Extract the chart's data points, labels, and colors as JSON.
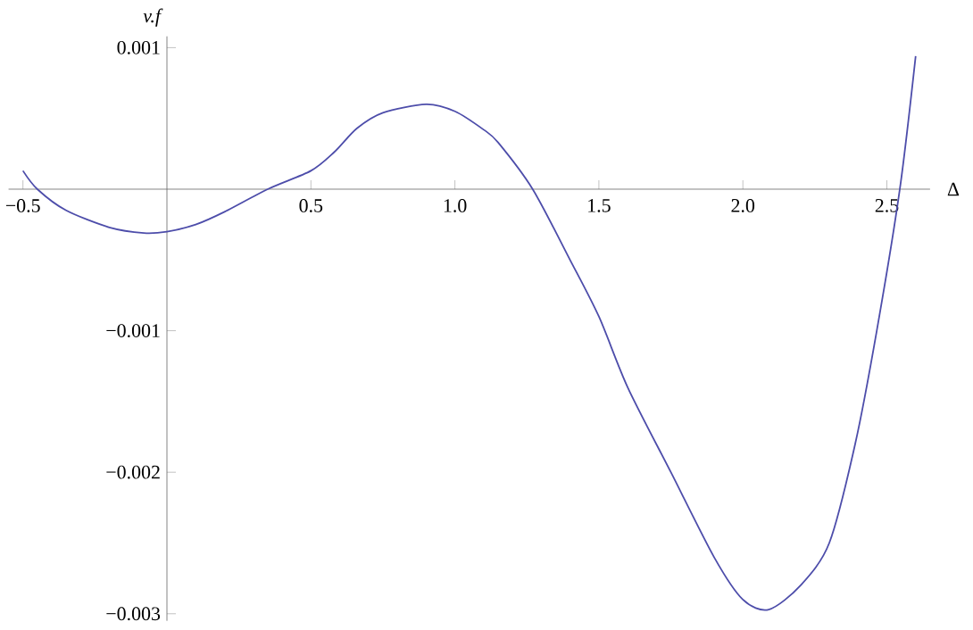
{
  "chart_data": {
    "type": "line",
    "xlabel": "Δ",
    "ylabel": "v.f",
    "xlim": [
      -0.55,
      2.65
    ],
    "ylim": [
      -0.00305,
      0.00108
    ],
    "xticks": [
      {
        "value": -0.5,
        "label": "−0.5"
      },
      0.5,
      {
        "value": 1,
        "label": "1.0"
      },
      1.5,
      {
        "value": 2,
        "label": "2.0"
      },
      2.5
    ],
    "yticks": [
      {
        "value": -0.003,
        "label": "−0.003"
      },
      {
        "value": -0.002,
        "label": "−0.002"
      },
      {
        "value": -0.001,
        "label": "−0.001"
      },
      0.001
    ],
    "grid": false,
    "marker": "none",
    "line_style": "solid",
    "series": [
      {
        "color": "#4d4daa",
        "x": [
          -0.5,
          -0.45,
          -0.35,
          -0.2,
          -0.08,
          0,
          0.1,
          0.2,
          0.35,
          0.5,
          0.58,
          0.66,
          0.75,
          0.9,
          1.0,
          1.1,
          1.15,
          1.27,
          1.4,
          1.5,
          1.6,
          1.75,
          1.9,
          2.0,
          2.09,
          2.2,
          2.3,
          2.39,
          2.465,
          2.545,
          2.6
        ],
        "values": [
          0.00013,
          0,
          -0.00015,
          -0.00027,
          -0.00031,
          -0.0003,
          -0.00025,
          -0.00016,
          0,
          0.00013,
          0.00026,
          0.00043,
          0.00054,
          0.0006,
          0.00055,
          0.00042,
          0.00033,
          0,
          -0.0005,
          -0.0009,
          -0.0014,
          -0.002,
          -0.0026,
          -0.0029,
          -0.00297,
          -0.0028,
          -0.0025,
          -0.0018,
          -0.001,
          0,
          0.00094
        ]
      }
    ]
  }
}
